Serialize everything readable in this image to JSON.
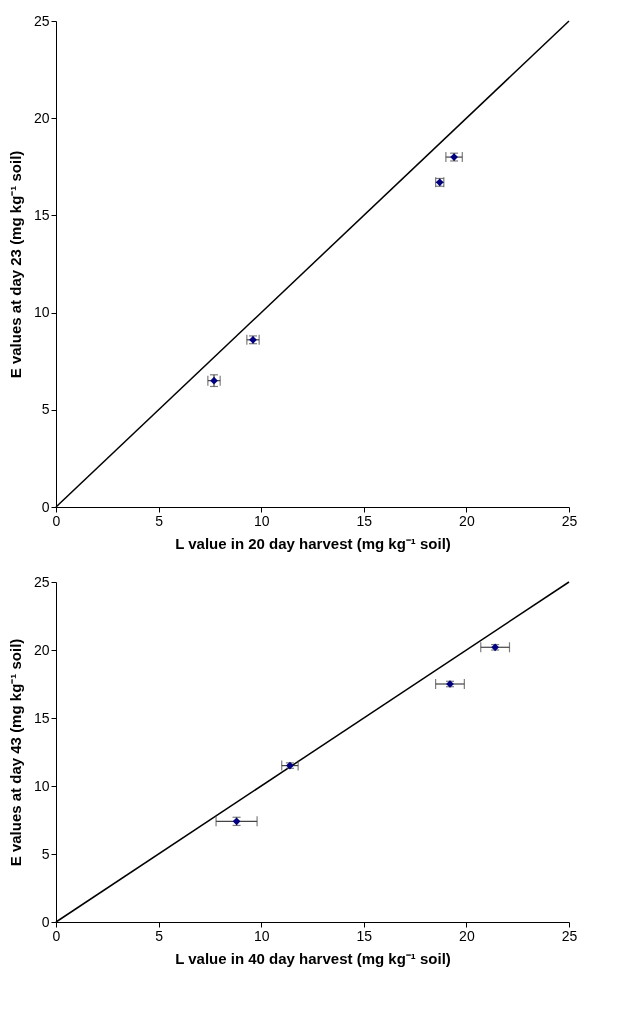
{
  "chart_data": [
    {
      "type": "scatter",
      "xlabel": "L value in 20 day harvest (mg kg⁻¹ soil)",
      "ylabel": "E values at day 23 (mg kg⁻¹ soil)",
      "xlim": [
        0,
        25
      ],
      "ylim": [
        0,
        25
      ],
      "xticks": [
        0,
        5,
        10,
        15,
        20,
        25
      ],
      "yticks": [
        0,
        5,
        10,
        15,
        20,
        25
      ],
      "grid": false,
      "series": [
        {
          "marker": "diamond",
          "color": "#000080",
          "x": [
            7.7,
            9.6,
            18.7,
            19.4
          ],
          "values": [
            6.5,
            8.6,
            16.7,
            18.0
          ],
          "xerrors": [
            0.3,
            0.3,
            0.2,
            0.4
          ],
          "errors": [
            0.3,
            0.2,
            0.2,
            0.2
          ]
        },
        {
          "type": "line",
          "color": "#000000",
          "x": [
            0,
            25
          ],
          "values": [
            0,
            25
          ]
        }
      ]
    },
    {
      "type": "scatter",
      "xlabel": "L value in 40 day harvest (mg kg⁻¹ soil)",
      "ylabel": "E values at day 43 (mg kg⁻¹ soil)",
      "xlim": [
        0,
        25
      ],
      "ylim": [
        0,
        25
      ],
      "xticks": [
        0,
        5,
        10,
        15,
        20,
        25
      ],
      "yticks": [
        0,
        5,
        10,
        15,
        20,
        25
      ],
      "grid": false,
      "series": [
        {
          "marker": "diamond",
          "color": "#000080",
          "x": [
            8.8,
            11.4,
            19.2,
            21.4
          ],
          "values": [
            7.4,
            11.5,
            17.5,
            20.2
          ],
          "xerrors": [
            1.0,
            0.4,
            0.7,
            0.7
          ],
          "errors": [
            0.3,
            0.2,
            0.2,
            0.2
          ]
        },
        {
          "type": "line",
          "color": "#000000",
          "x": [
            0,
            25
          ],
          "values": [
            0,
            25
          ]
        }
      ]
    }
  ]
}
